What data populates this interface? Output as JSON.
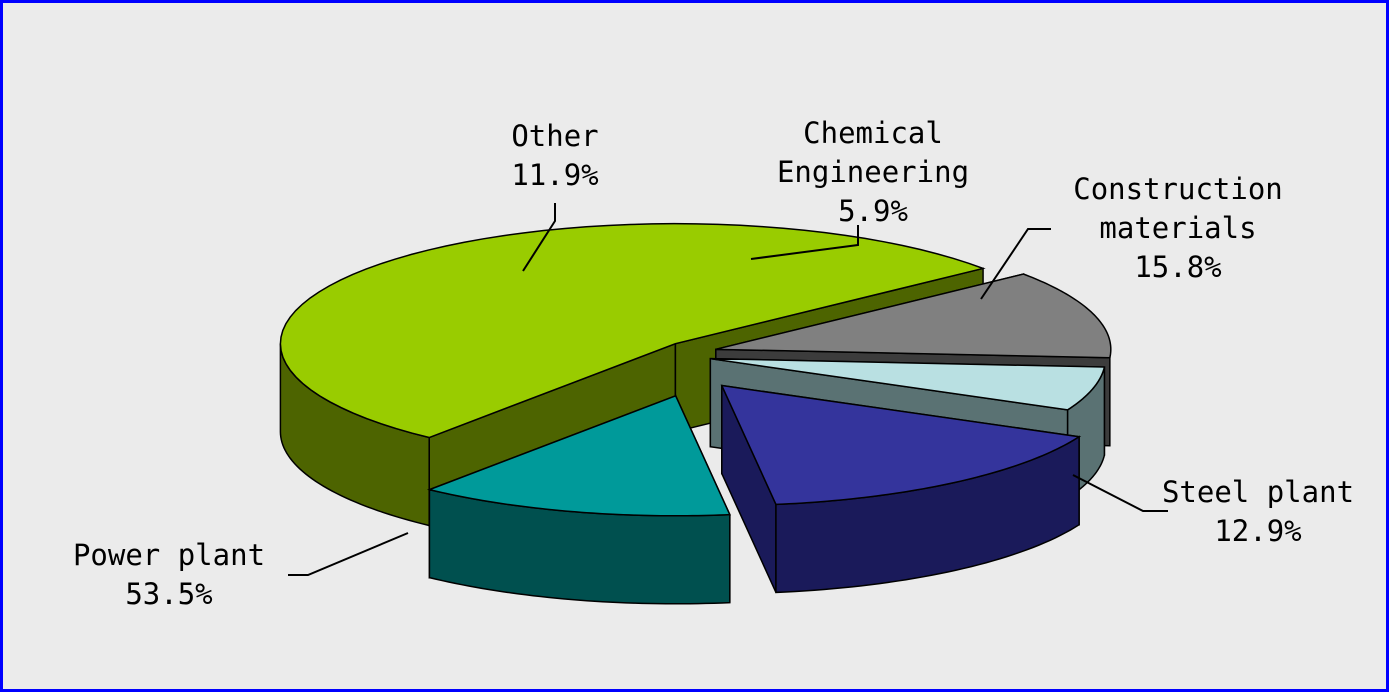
{
  "chart_data": {
    "type": "pie",
    "title": "",
    "style": "3d-exploded",
    "slices": [
      {
        "name": "Chemical Engineering",
        "label_lines": [
          "Chemical",
          "Engineering"
        ],
        "value": 5.9,
        "value_label": "5.9%",
        "top_color": "#b9e0e2",
        "side_color": "#5a7273"
      },
      {
        "name": "Construction materials",
        "label_lines": [
          "Construction",
          "materials"
        ],
        "value": 15.8,
        "value_label": "15.8%",
        "top_color": "#34349c",
        "side_color": "#1a1a5a"
      },
      {
        "name": "Steel plant",
        "label_lines": [
          "Steel plant"
        ],
        "value": 12.9,
        "value_label": "12.9%",
        "top_color": "#009a9a",
        "side_color": "#00504f"
      },
      {
        "name": "Power plant",
        "label_lines": [
          "Power plant"
        ],
        "value": 53.5,
        "value_label": "53.5%",
        "top_color": "#99cc00",
        "side_color": "#4d6400"
      },
      {
        "name": "Other",
        "label_lines": [
          "Other"
        ],
        "value": 11.9,
        "value_label": "11.9%",
        "top_color": "#808080",
        "side_color": "#3c3c3c"
      }
    ]
  }
}
